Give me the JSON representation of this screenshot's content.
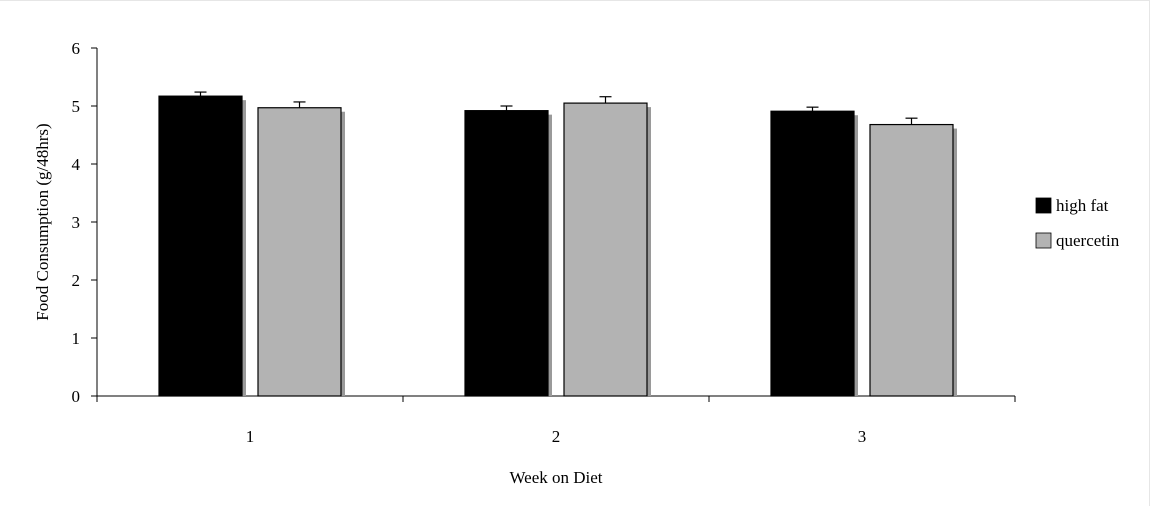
{
  "chart_data": {
    "type": "bar",
    "title": "",
    "xlabel": "Week on Diet",
    "ylabel": "Food Consumption (g/48hrs)",
    "categories": [
      "1",
      "2",
      "3"
    ],
    "ylim": [
      0,
      6
    ],
    "yticks": [
      "0",
      "1",
      "2",
      "3",
      "4",
      "5",
      "6"
    ],
    "grid": false,
    "legend_position": "right",
    "series": [
      {
        "name": "high fat",
        "color": "#000000",
        "values": [
          5.17,
          4.92,
          4.91
        ],
        "errors": [
          0.07,
          0.08,
          0.07
        ]
      },
      {
        "name": "quercetin",
        "color": "#b3b3b3",
        "values": [
          4.97,
          5.05,
          4.68
        ],
        "errors": [
          0.1,
          0.11,
          0.11
        ]
      }
    ]
  }
}
